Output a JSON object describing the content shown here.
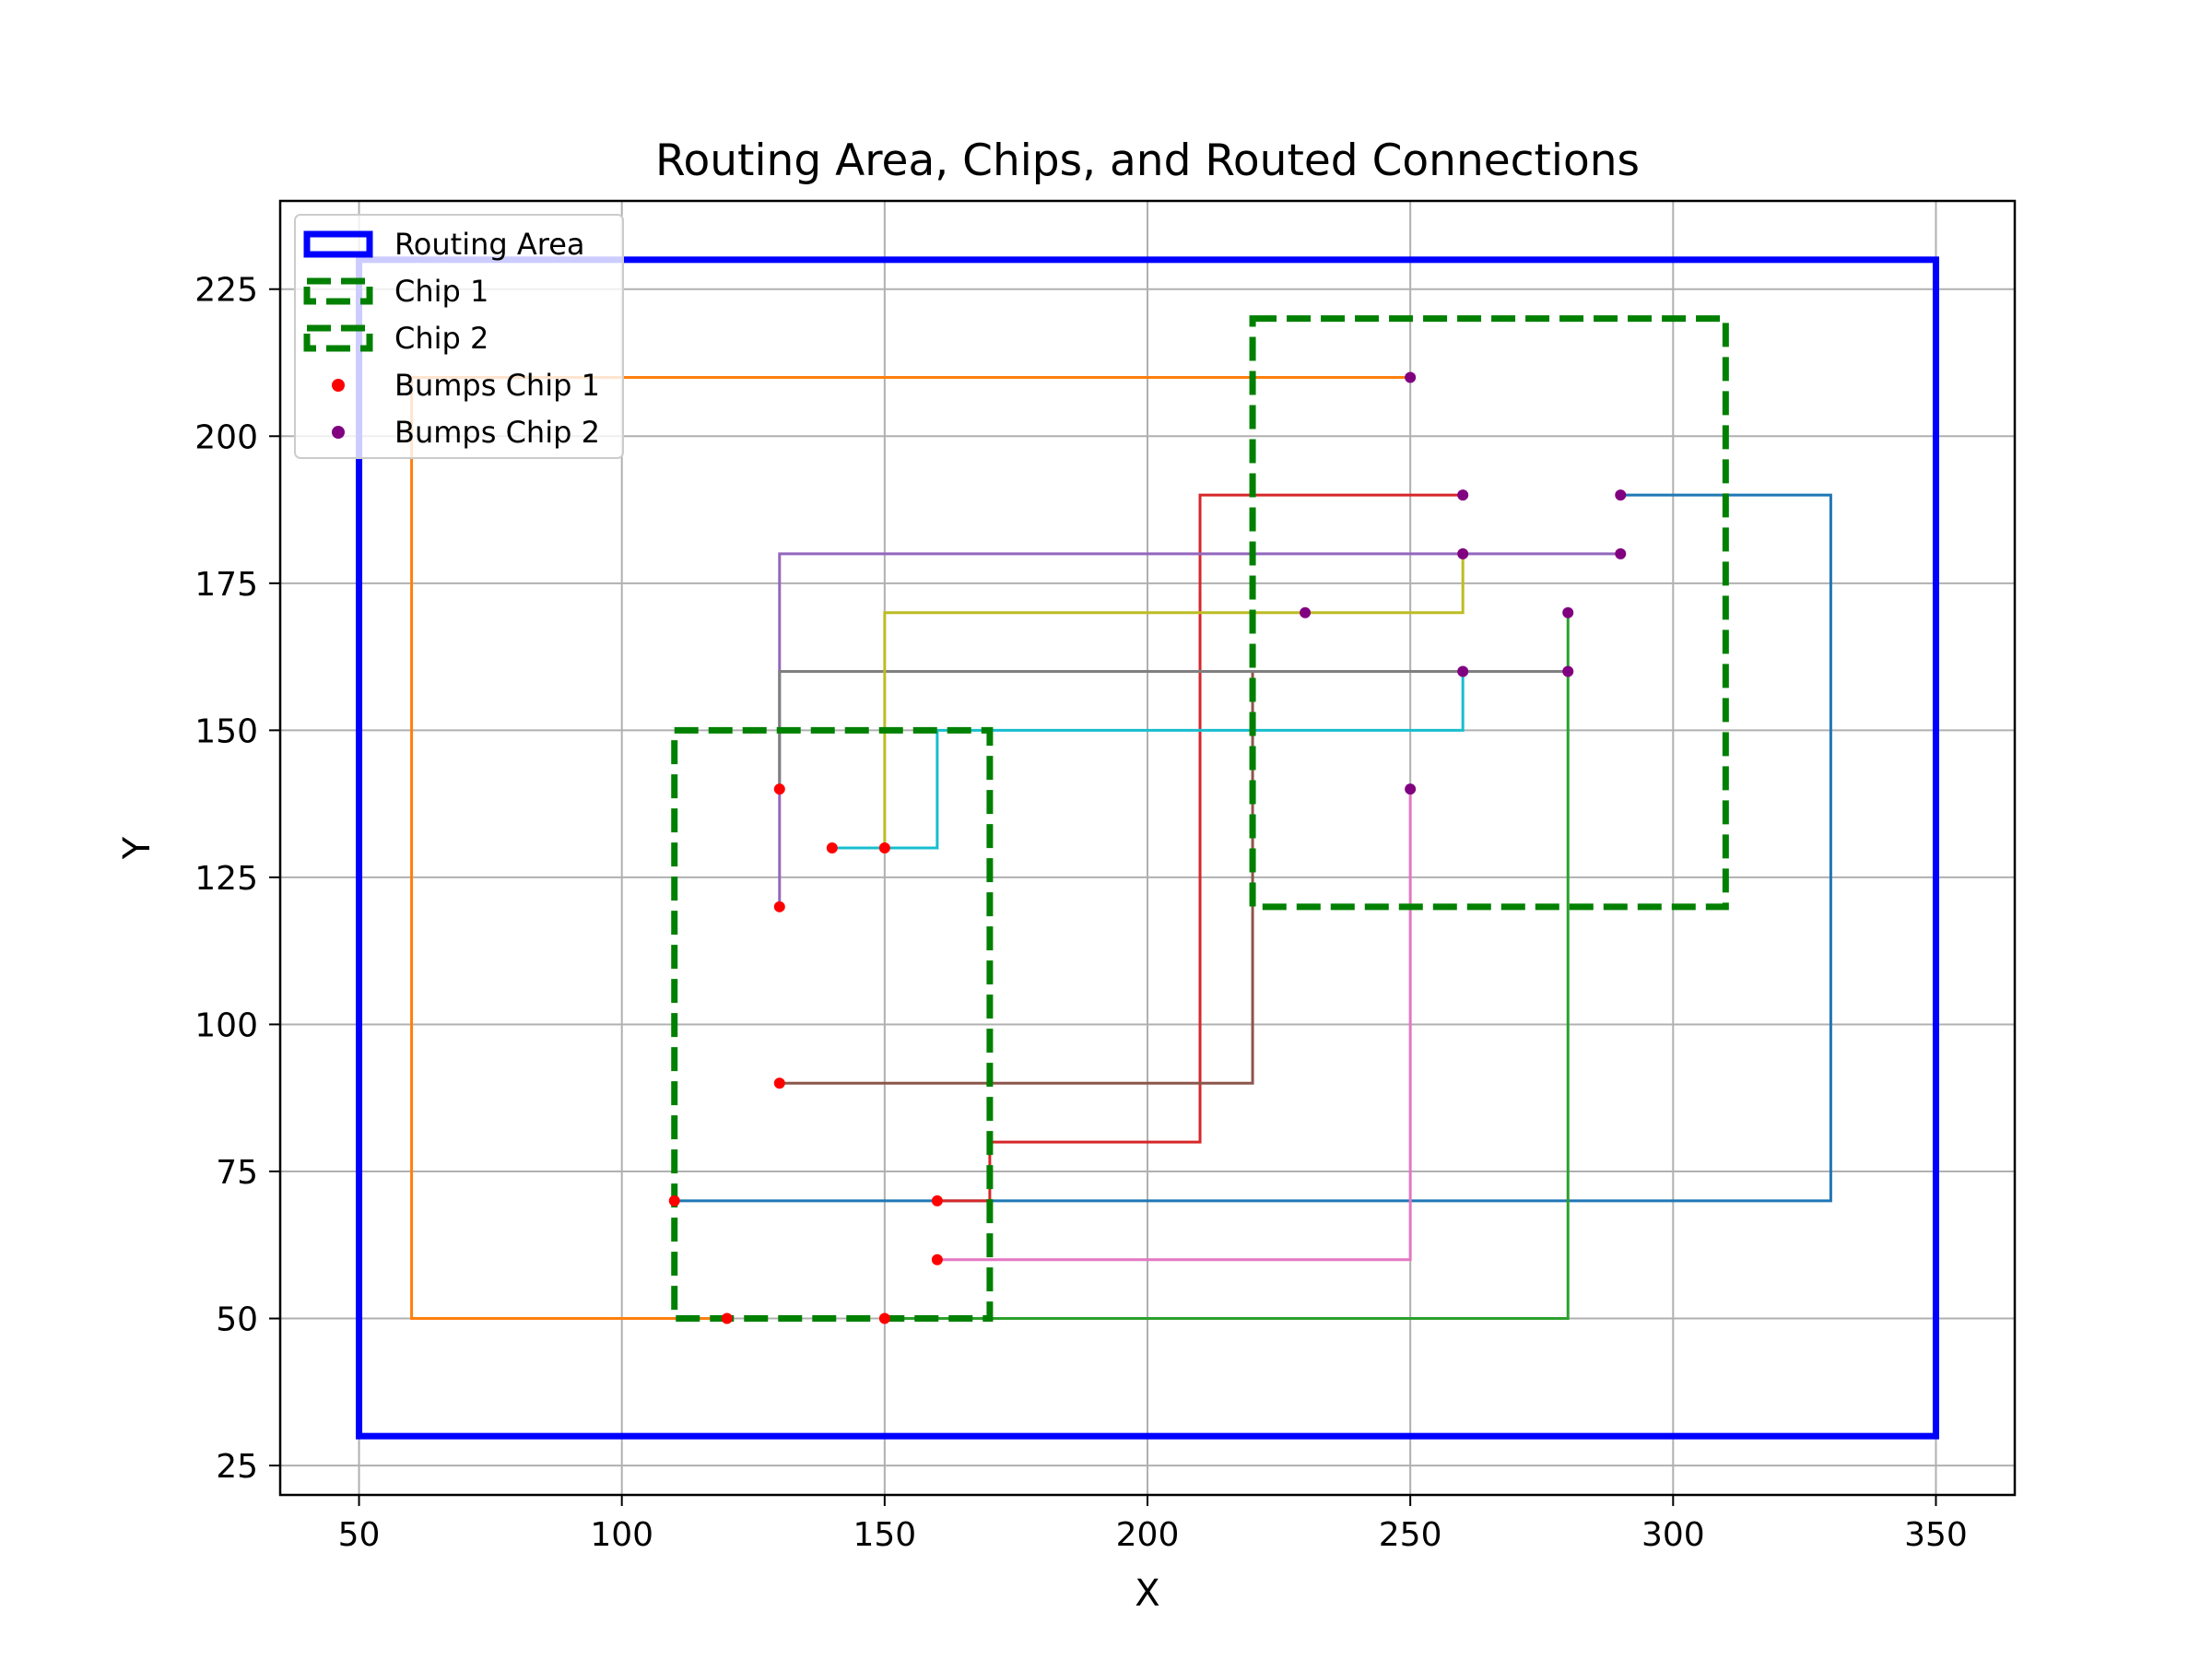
{
  "chart_data": {
    "type": "line",
    "title": "Routing Area, Chips, and Routed Connections",
    "xlabel": "X",
    "ylabel": "Y",
    "xlim": [
      35,
      365
    ],
    "ylim": [
      20,
      240
    ],
    "xticks": [
      50,
      100,
      150,
      200,
      250,
      300,
      350
    ],
    "yticks": [
      25,
      50,
      75,
      100,
      125,
      150,
      175,
      200,
      225
    ],
    "grid": true,
    "legend_position": "upper-left",
    "legend": [
      {
        "label": "Routing Area",
        "kind": "rect",
        "color": "#0000ff",
        "style": "solid"
      },
      {
        "label": "Chip 1",
        "kind": "rect",
        "color": "#008000",
        "style": "dashed"
      },
      {
        "label": "Chip 2",
        "kind": "rect",
        "color": "#008000",
        "style": "dashed"
      },
      {
        "label": "Bumps Chip 1",
        "kind": "dot",
        "color": "#ff0000"
      },
      {
        "label": "Bumps Chip 2",
        "kind": "dot",
        "color": "#800080"
      }
    ],
    "routing_area": {
      "x": [
        50,
        350
      ],
      "y": [
        30,
        230
      ],
      "color": "#0000ff"
    },
    "chips": [
      {
        "name": "Chip 1",
        "x": [
          110,
          170
        ],
        "y": [
          50,
          150
        ],
        "color": "#008000"
      },
      {
        "name": "Chip 2",
        "x": [
          220,
          310
        ],
        "y": [
          120,
          220
        ],
        "color": "#008000"
      }
    ],
    "bumps_chip1": [
      [
        110,
        70
      ],
      [
        120,
        50
      ],
      [
        130,
        90
      ],
      [
        130,
        120
      ],
      [
        130,
        140
      ],
      [
        140,
        130
      ],
      [
        150,
        50
      ],
      [
        150,
        130
      ],
      [
        160,
        60
      ],
      [
        160,
        70
      ]
    ],
    "bumps_chip2": [
      [
        230,
        170
      ],
      [
        250,
        140
      ],
      [
        250,
        210
      ],
      [
        260,
        160
      ],
      [
        260,
        180
      ],
      [
        260,
        190
      ],
      [
        280,
        160
      ],
      [
        280,
        170
      ],
      [
        290,
        180
      ],
      [
        290,
        190
      ]
    ],
    "routes": [
      {
        "color": "#1f77b4",
        "points": [
          [
            110,
            70
          ],
          [
            330,
            70
          ],
          [
            330,
            190
          ],
          [
            290,
            190
          ]
        ]
      },
      {
        "color": "#ff7f0e",
        "points": [
          [
            120,
            50
          ],
          [
            60,
            50
          ],
          [
            60,
            210
          ],
          [
            250,
            210
          ]
        ]
      },
      {
        "color": "#2ca02c",
        "points": [
          [
            150,
            50
          ],
          [
            280,
            50
          ],
          [
            280,
            170
          ]
        ]
      },
      {
        "color": "#d62728",
        "points": [
          [
            160,
            70
          ],
          [
            170,
            70
          ],
          [
            170,
            80
          ],
          [
            210,
            80
          ],
          [
            210,
            190
          ],
          [
            260,
            190
          ]
        ]
      },
      {
        "color": "#9467bd",
        "points": [
          [
            130,
            120
          ],
          [
            130,
            180
          ],
          [
            290,
            180
          ]
        ]
      },
      {
        "color": "#8c564b",
        "points": [
          [
            130,
            90
          ],
          [
            220,
            90
          ],
          [
            220,
            160
          ]
        ]
      },
      {
        "color": "#e377c2",
        "points": [
          [
            160,
            60
          ],
          [
            250,
            60
          ],
          [
            250,
            140
          ]
        ]
      },
      {
        "color": "#7f7f7f",
        "points": [
          [
            130,
            140
          ],
          [
            130,
            160
          ],
          [
            280,
            160
          ]
        ]
      },
      {
        "color": "#bcbd22",
        "points": [
          [
            150,
            130
          ],
          [
            150,
            170
          ],
          [
            260,
            170
          ],
          [
            260,
            180
          ]
        ]
      },
      {
        "color": "#17becf",
        "points": [
          [
            140,
            130
          ],
          [
            160,
            130
          ],
          [
            160,
            150
          ],
          [
            260,
            150
          ],
          [
            260,
            160
          ]
        ]
      }
    ]
  }
}
